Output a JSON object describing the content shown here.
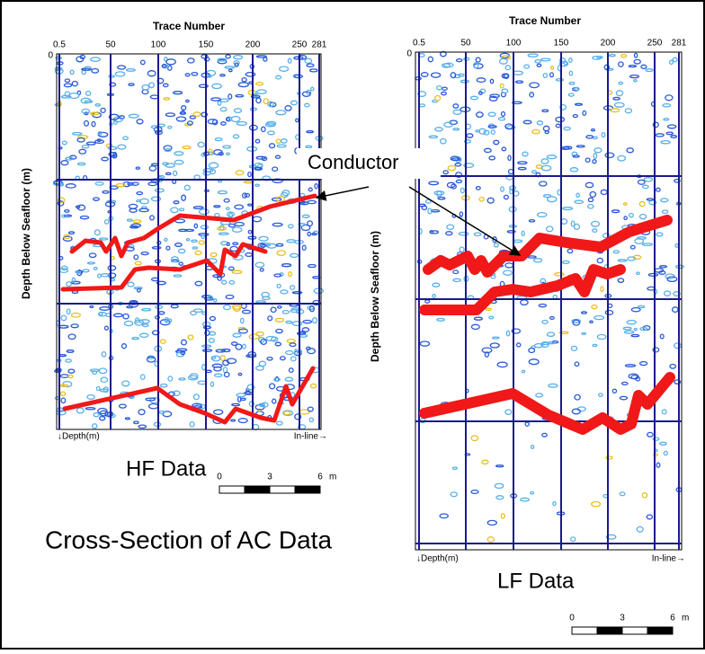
{
  "left_panel": {
    "x_axis_title": "Trace Number",
    "x_ticks": [
      "0.5",
      "50",
      "100",
      "150",
      "200",
      "250",
      "281"
    ],
    "y_tick": "0",
    "y_axis_title": "Depth Below Seafloor (m)",
    "corner_left": "↓Depth(m)",
    "corner_right": "In-line→",
    "caption": "HF Data"
  },
  "right_panel": {
    "x_axis_title": "Trace Number",
    "x_ticks": [
      "0.5",
      "50",
      "100",
      "150",
      "200",
      "250",
      "281"
    ],
    "y_tick": "0",
    "y_axis_title": "Depth Below Seafloor (m)",
    "corner_left": "↓Depth(m)",
    "corner_right": "In-line→",
    "caption": "LF Data"
  },
  "annotation": "Conductor",
  "title": "Cross-Section of AC Data",
  "scale_bars": [
    {
      "labels": [
        "0",
        "3",
        "6"
      ],
      "unit": "m"
    },
    {
      "labels": [
        "0",
        "3",
        "6"
      ],
      "unit": "m"
    }
  ]
}
